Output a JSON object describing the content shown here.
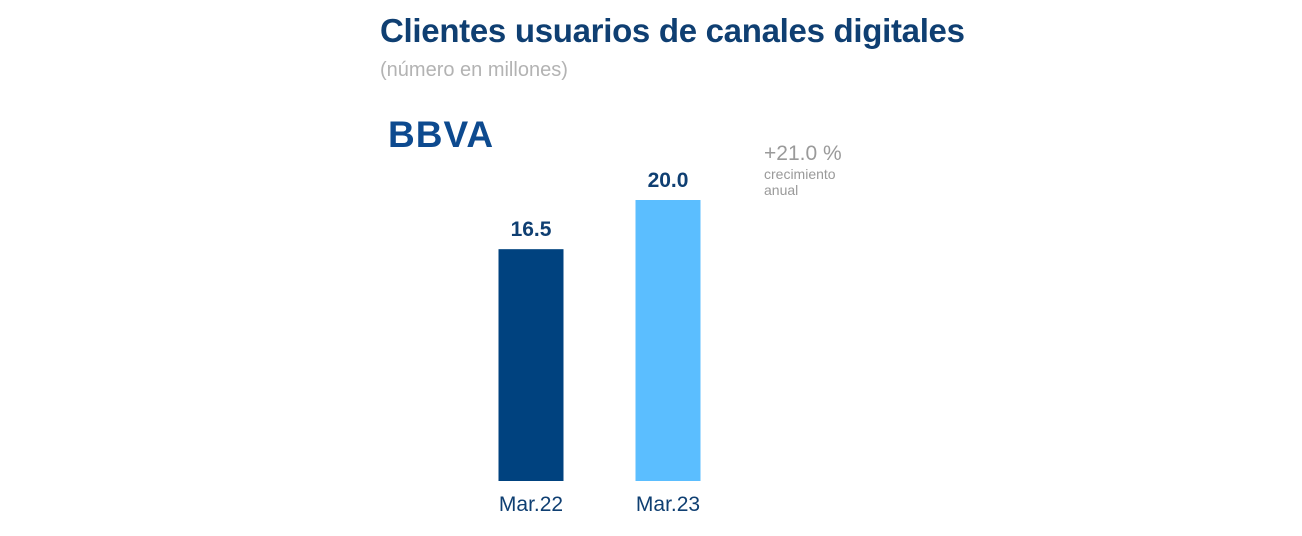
{
  "chart_data": {
    "type": "bar",
    "title": "Clientes usuarios de canales digitales",
    "subtitle": "(número en millones)",
    "categories": [
      "Mar.22",
      "Mar.23"
    ],
    "values": [
      16.5,
      20.0
    ],
    "value_labels": [
      "16.5",
      "20.0"
    ],
    "colors": [
      "#00427f",
      "#5bbeff"
    ],
    "ylim": [
      0,
      20
    ],
    "grid": false,
    "annotation": {
      "value": "+21.0 %",
      "label": "crecimiento anual"
    }
  },
  "logo": {
    "text": "BBVA",
    "color": "#0d4a8f"
  }
}
